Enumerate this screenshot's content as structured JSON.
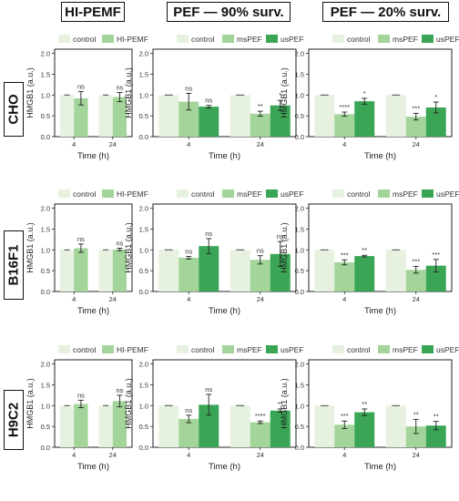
{
  "column_headers": [
    "HI-PEMF",
    "PEF — 90% surv.",
    "PEF — 20% surv."
  ],
  "row_headers": [
    "CHO",
    "B16F1",
    "H9C2"
  ],
  "colors": {
    "control": "#e6f2df",
    "msPEF": "#a3d49a",
    "usPEF": "#3aa655",
    "HI-PEMF": "#a3d49a"
  },
  "chart_data": [
    {
      "type": "bar",
      "row": "CHO",
      "column": "HI-PEMF",
      "categories": [
        "4",
        "24"
      ],
      "xlabel": "Time (h)",
      "ylabel": "HMGB1 (a.u.)",
      "ylim": [
        0,
        2.1
      ],
      "yticks": [
        "0.0",
        "0.5",
        "1.0",
        "1.5",
        "2.0"
      ],
      "legend": [
        "control",
        "HI-PEMF"
      ],
      "legend_position": "top",
      "series": [
        {
          "name": "control",
          "values": [
            1.0,
            1.0
          ]
        },
        {
          "name": "HI-PEMF",
          "values": [
            0.92,
            0.95
          ],
          "errors": [
            0.16,
            0.11
          ],
          "labels": [
            "ns",
            "ns"
          ]
        }
      ]
    },
    {
      "type": "bar",
      "row": "CHO",
      "column": "PEF — 90% surv.",
      "categories": [
        "4",
        "24"
      ],
      "xlabel": "Time (h)",
      "ylabel": "HMGB1 (a.u.)",
      "ylim": [
        0,
        2.1
      ],
      "yticks": [
        "0.0",
        "0.5",
        "1.0",
        "1.5",
        "2.0"
      ],
      "legend": [
        "control",
        "msPEF",
        "usPEF"
      ],
      "legend_position": "top",
      "series": [
        {
          "name": "control",
          "values": [
            1.0,
            1.0
          ]
        },
        {
          "name": "msPEF",
          "values": [
            0.84,
            0.55
          ],
          "errors": [
            0.2,
            0.06
          ],
          "labels": [
            "ns",
            "**"
          ]
        },
        {
          "name": "usPEF",
          "values": [
            0.72,
            0.75
          ],
          "errors": [
            0.03,
            0.12
          ],
          "labels": [
            "ns",
            "*"
          ]
        }
      ]
    },
    {
      "type": "bar",
      "row": "CHO",
      "column": "PEF — 20% surv.",
      "categories": [
        "4",
        "24"
      ],
      "xlabel": "Time (h)",
      "ylabel": "HMGB1 (a.u.)",
      "ylim": [
        0,
        2.1
      ],
      "yticks": [
        "0.0",
        "0.5",
        "1.0",
        "1.5",
        "2.0"
      ],
      "legend": [
        "control",
        "msPEF",
        "usPEF"
      ],
      "legend_position": "top",
      "series": [
        {
          "name": "control",
          "values": [
            1.0,
            1.0
          ]
        },
        {
          "name": "msPEF",
          "values": [
            0.54,
            0.48
          ],
          "errors": [
            0.05,
            0.08
          ],
          "labels": [
            "****",
            "***"
          ]
        },
        {
          "name": "usPEF",
          "values": [
            0.85,
            0.7
          ],
          "errors": [
            0.07,
            0.13
          ],
          "labels": [
            "*",
            "*"
          ]
        }
      ]
    },
    {
      "type": "bar",
      "row": "B16F1",
      "column": "HI-PEMF",
      "categories": [
        "4",
        "24"
      ],
      "xlabel": "Time (h)",
      "ylabel": "HMGB1 (a.u.)",
      "ylim": [
        0,
        2.1
      ],
      "yticks": [
        "0.0",
        "0.5",
        "1.0",
        "1.5",
        "2.0"
      ],
      "legend": [
        "control",
        "HI-PEMF"
      ],
      "legend_position": "top",
      "series": [
        {
          "name": "control",
          "values": [
            1.0,
            1.0
          ]
        },
        {
          "name": "HI-PEMF",
          "values": [
            1.04,
            1.01
          ],
          "errors": [
            0.1,
            0.03
          ],
          "labels": [
            "ns",
            "ns"
          ]
        }
      ]
    },
    {
      "type": "bar",
      "row": "B16F1",
      "column": "PEF — 90% surv.",
      "categories": [
        "4",
        "24"
      ],
      "xlabel": "Time (h)",
      "ylabel": "HMGB1 (a.u.)",
      "ylim": [
        0,
        2.1
      ],
      "yticks": [
        "0.0",
        "0.5",
        "1.0",
        "1.5",
        "2.0"
      ],
      "legend": [
        "control",
        "msPEF",
        "usPEF"
      ],
      "legend_position": "top",
      "series": [
        {
          "name": "control",
          "values": [
            1.0,
            1.0
          ]
        },
        {
          "name": "msPEF",
          "values": [
            0.81,
            0.76
          ],
          "errors": [
            0.03,
            0.1
          ],
          "labels": [
            "ns",
            "ns"
          ]
        },
        {
          "name": "usPEF",
          "values": [
            1.09,
            0.9
          ],
          "errors": [
            0.18,
            0.3
          ],
          "labels": [
            "ns",
            "ns"
          ]
        }
      ]
    },
    {
      "type": "bar",
      "row": "B16F1",
      "column": "PEF — 20% surv.",
      "categories": [
        "4",
        "24"
      ],
      "xlabel": "Time (h)",
      "ylabel": "HMGB1 (a.u.)",
      "ylim": [
        0,
        2.1
      ],
      "yticks": [
        "0.0",
        "0.5",
        "1.0",
        "1.5",
        "2.0"
      ],
      "legend": [
        "control",
        "msPEF",
        "usPEF"
      ],
      "legend_position": "top",
      "series": [
        {
          "name": "control",
          "values": [
            1.0,
            1.0
          ]
        },
        {
          "name": "msPEF",
          "values": [
            0.7,
            0.52
          ],
          "errors": [
            0.06,
            0.08
          ],
          "labels": [
            "***",
            "***"
          ]
        },
        {
          "name": "usPEF",
          "values": [
            0.85,
            0.62
          ],
          "errors": [
            0.02,
            0.15
          ],
          "labels": [
            "**",
            "***"
          ]
        }
      ]
    },
    {
      "type": "bar",
      "row": "H9C2",
      "column": "HI-PEMF",
      "categories": [
        "4",
        "24"
      ],
      "xlabel": "Time (h)",
      "ylabel": "HMGB1 (a.u.)",
      "ylim": [
        0,
        2.1
      ],
      "yticks": [
        "0.0",
        "0.5",
        "1.0",
        "1.5",
        "2.0"
      ],
      "legend": [
        "control",
        "HI-PEMF"
      ],
      "legend_position": "top",
      "series": [
        {
          "name": "control",
          "values": [
            1.0,
            1.0
          ]
        },
        {
          "name": "HI-PEMF",
          "values": [
            1.04,
            1.11
          ],
          "errors": [
            0.09,
            0.14
          ],
          "labels": [
            "ns",
            "ns"
          ]
        }
      ]
    },
    {
      "type": "bar",
      "row": "H9C2",
      "column": "PEF — 90% surv.",
      "categories": [
        "4",
        "24"
      ],
      "xlabel": "Time (h)",
      "ylabel": "HMGB1 (a.u.)",
      "ylim": [
        0,
        2.1
      ],
      "yticks": [
        "0.0",
        "0.5",
        "1.0",
        "1.5",
        "2.0"
      ],
      "legend": [
        "control",
        "msPEF",
        "usPEF"
      ],
      "legend_position": "top",
      "series": [
        {
          "name": "control",
          "values": [
            1.0,
            1.0
          ]
        },
        {
          "name": "msPEF",
          "values": [
            0.68,
            0.6
          ],
          "errors": [
            0.09,
            0.03
          ],
          "labels": [
            "ns",
            "****"
          ]
        },
        {
          "name": "usPEF",
          "values": [
            1.02,
            0.88
          ],
          "errors": [
            0.25,
            0.04
          ],
          "labels": [
            "ns",
            "**"
          ]
        }
      ]
    },
    {
      "type": "bar",
      "row": "H9C2",
      "column": "PEF — 20% surv.",
      "categories": [
        "4",
        "24"
      ],
      "xlabel": "Time (h)",
      "ylabel": "HMGB1 (a.u.)",
      "ylim": [
        0,
        2.1
      ],
      "yticks": [
        "0.0",
        "0.5",
        "1.0",
        "1.5",
        "2.0"
      ],
      "legend": [
        "control",
        "msPEF",
        "usPEF"
      ],
      "legend_position": "top",
      "series": [
        {
          "name": "control",
          "values": [
            1.0,
            1.0
          ]
        },
        {
          "name": "msPEF",
          "values": [
            0.54,
            0.5
          ],
          "errors": [
            0.09,
            0.17
          ],
          "labels": [
            "***",
            "**"
          ]
        },
        {
          "name": "usPEF",
          "values": [
            0.84,
            0.52
          ],
          "errors": [
            0.08,
            0.1
          ],
          "labels": [
            "**",
            "**"
          ]
        }
      ]
    }
  ]
}
